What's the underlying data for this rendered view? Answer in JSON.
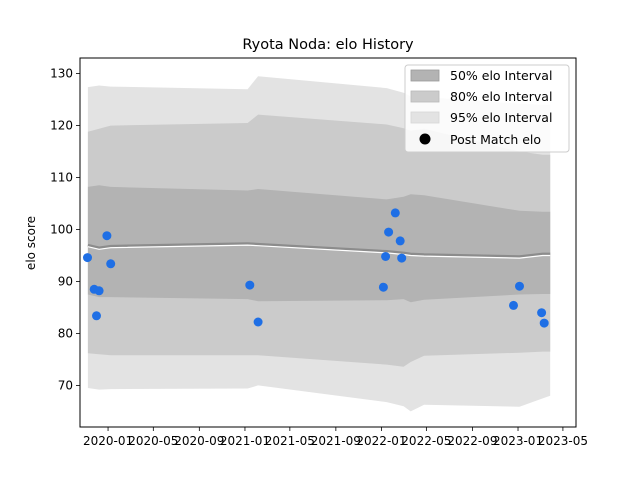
{
  "chart_data": {
    "type": "line",
    "title": "Ryota Noda: elo History",
    "xlabel": "",
    "ylabel": "elo score",
    "xlim": [
      "2019-10-18",
      "2023-06-05"
    ],
    "ylim": [
      62,
      133
    ],
    "x_ticks": [
      "2020-01",
      "2020-05",
      "2020-09",
      "2021-01",
      "2021-05",
      "2021-09",
      "2022-01",
      "2022-05",
      "2022-09",
      "2023-01",
      "2023-05"
    ],
    "y_ticks": [
      70,
      80,
      90,
      100,
      110,
      120,
      130
    ],
    "grid": false,
    "legend_position": "top-right",
    "legend": [
      "50% elo Interval",
      "80% elo Interval",
      "95% elo Interval",
      "Post Match elo"
    ],
    "colors": {
      "band50": "#b3b3b3",
      "band80": "#cbcbcb",
      "band95": "#e3e3e3",
      "mean_line": "#8c8c8c",
      "highlight_line": "#ffffff",
      "points": "#1f6fe5"
    },
    "intervals": {
      "dates": [
        "2019-11-08",
        "2019-12-08",
        "2020-01-08",
        "2021-01-08",
        "2021-02-05",
        "2022-01-15",
        "2022-03-01",
        "2022-03-20",
        "2022-04-25",
        "2023-01-05",
        "2023-03-08",
        "2023-03-28"
      ],
      "mean": [
        97,
        96.5,
        96.8,
        97.3,
        97.2,
        95.8,
        95.5,
        95.3,
        95.2,
        94.8,
        95.3,
        95.3
      ],
      "lower50": [
        87.5,
        87,
        87,
        86.6,
        86.2,
        86.4,
        86.6,
        86,
        86.5,
        87.5,
        87.6,
        87.6
      ],
      "upper50": [
        108.2,
        108.5,
        108.2,
        107.5,
        107.8,
        105.8,
        106.3,
        106.8,
        106.6,
        103.6,
        103.4,
        103.4
      ],
      "lower80": [
        76.2,
        76,
        75.8,
        75.8,
        75.8,
        74,
        73.6,
        74.5,
        75.7,
        76.3,
        76.5,
        76.5
      ],
      "upper80": [
        118.8,
        119.4,
        120,
        120.5,
        122.1,
        120.2,
        119.5,
        119,
        119.4,
        115,
        114.4,
        114.4
      ],
      "lower95": [
        69.5,
        69.2,
        69.3,
        69.4,
        70,
        66.8,
        66,
        65,
        66.3,
        65.9,
        67.5,
        68
      ],
      "upper95": [
        127.4,
        127.7,
        127.5,
        127,
        129.5,
        127.2,
        126.3,
        125.6,
        125.5,
        124.2,
        124,
        124
      ]
    },
    "points": [
      {
        "x": "2019-11-07",
        "y": 94.6
      },
      {
        "x": "2019-11-25",
        "y": 88.5
      },
      {
        "x": "2019-12-01",
        "y": 83.4
      },
      {
        "x": "2019-12-08",
        "y": 88.2
      },
      {
        "x": "2019-12-29",
        "y": 98.8
      },
      {
        "x": "2020-01-08",
        "y": 93.4
      },
      {
        "x": "2021-01-14",
        "y": 89.3
      },
      {
        "x": "2021-02-05",
        "y": 82.2
      },
      {
        "x": "2022-01-06",
        "y": 88.9
      },
      {
        "x": "2022-01-12",
        "y": 94.8
      },
      {
        "x": "2022-01-20",
        "y": 99.5
      },
      {
        "x": "2022-02-07",
        "y": 103.2
      },
      {
        "x": "2022-02-20",
        "y": 97.8
      },
      {
        "x": "2022-02-24",
        "y": 94.5
      },
      {
        "x": "2022-12-20",
        "y": 85.4
      },
      {
        "x": "2023-01-05",
        "y": 89.1
      },
      {
        "x": "2023-03-05",
        "y": 84
      },
      {
        "x": "2023-03-12",
        "y": 82
      }
    ]
  }
}
